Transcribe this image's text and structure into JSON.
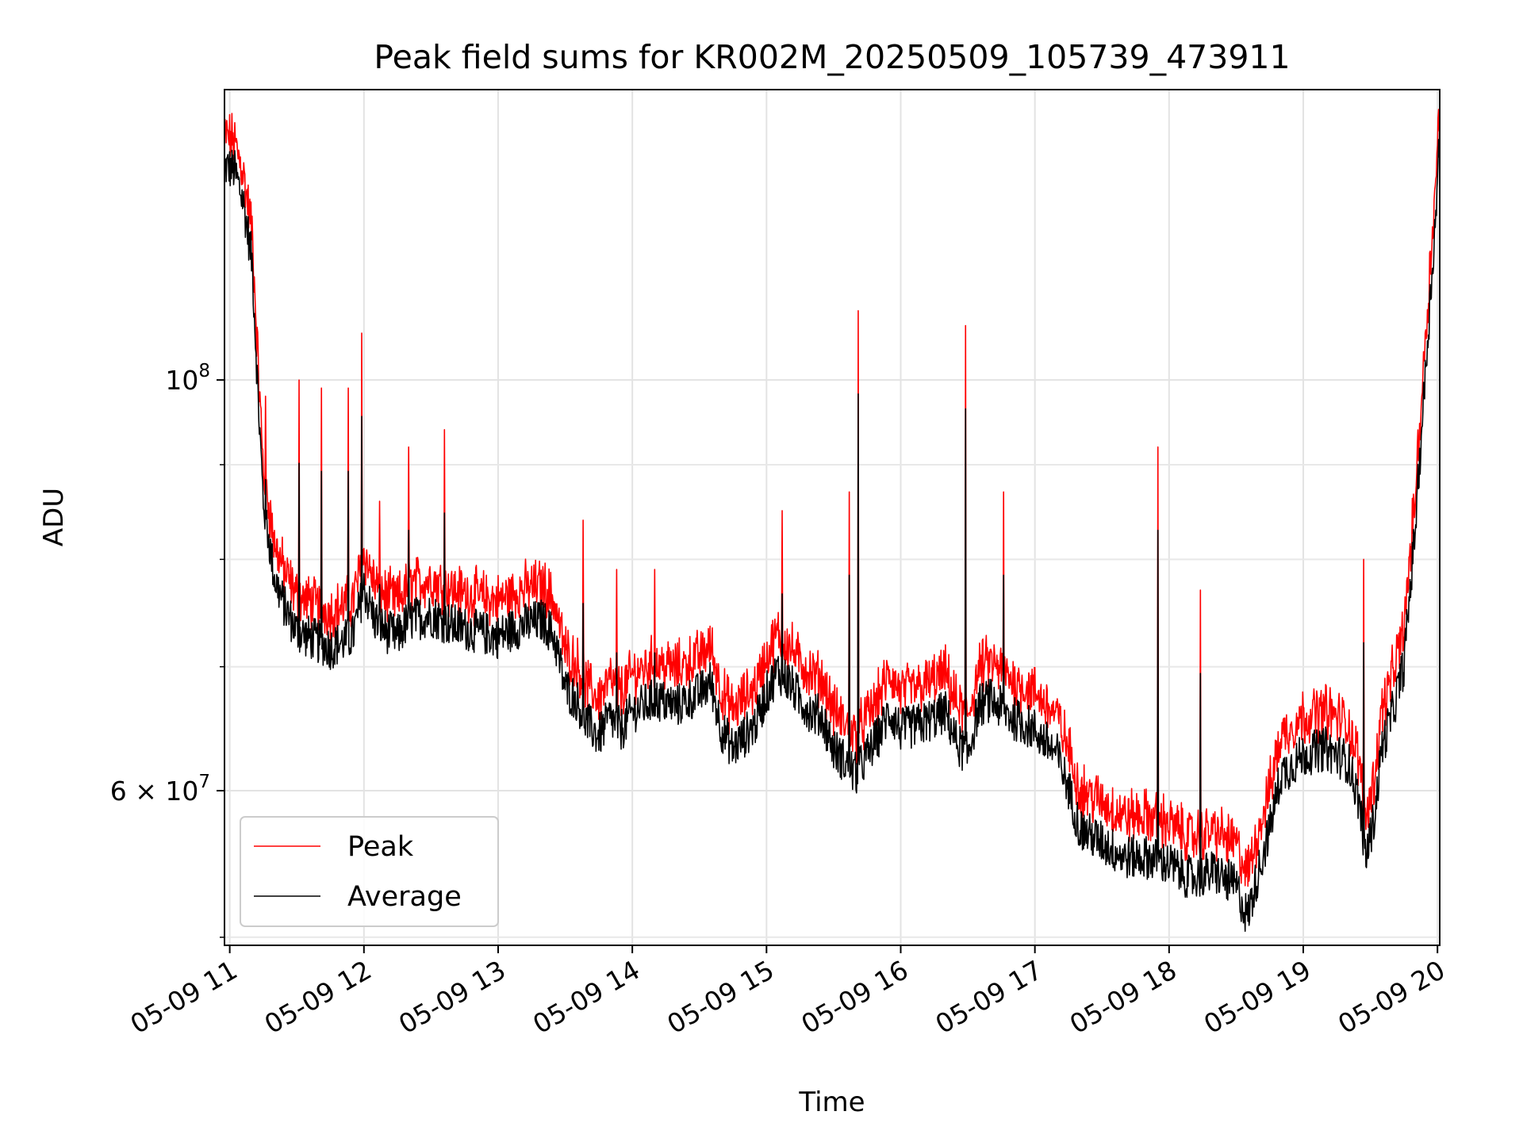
{
  "chart_data": {
    "type": "line",
    "title": "Peak field sums for KR002M_20250509_105739_473911",
    "xlabel": "Time",
    "ylabel": "ADU",
    "y_scale": "log",
    "grid": true,
    "legend_position": "lower-left",
    "xlim": [
      "2025-05-09 10:57:39",
      "2025-05-09 20:01:00"
    ],
    "ylim": [
      49500000,
      143500000
    ],
    "x_ticks": [
      {
        "x": "2025-05-09 11:00",
        "label": "05-09 11"
      },
      {
        "x": "2025-05-09 12:00",
        "label": "05-09 12"
      },
      {
        "x": "2025-05-09 13:00",
        "label": "05-09 13"
      },
      {
        "x": "2025-05-09 14:00",
        "label": "05-09 14"
      },
      {
        "x": "2025-05-09 15:00",
        "label": "05-09 15"
      },
      {
        "x": "2025-05-09 16:00",
        "label": "05-09 16"
      },
      {
        "x": "2025-05-09 17:00",
        "label": "05-09 17"
      },
      {
        "x": "2025-05-09 18:00",
        "label": "05-09 18"
      },
      {
        "x": "2025-05-09 19:00",
        "label": "05-09 19"
      },
      {
        "x": "2025-05-09 20:00",
        "label": "05-09 20"
      }
    ],
    "y_major_ticks": [
      {
        "value": 100000000,
        "base": "10",
        "exp": "8"
      },
      {
        "value": 60000000,
        "base": "6 × 10",
        "exp": "7"
      }
    ],
    "y_minor_ticks": [
      50000000,
      70000000,
      80000000,
      90000000
    ],
    "series": [
      {
        "name": "Peak",
        "color": "#ff0000",
        "x": [
          "2025-05-09 10:57:39",
          "2025-05-09 11:02",
          "2025-05-09 11:06",
          "2025-05-09 11:10",
          "2025-05-09 11:13",
          "2025-05-09 11:15",
          "2025-05-09 11:20",
          "2025-05-09 11:25",
          "2025-05-09 11:30",
          "2025-05-09 11:35",
          "2025-05-09 11:40",
          "2025-05-09 11:45",
          "2025-05-09 11:50",
          "2025-05-09 11:55",
          "2025-05-09 12:00",
          "2025-05-09 12:05",
          "2025-05-09 12:10",
          "2025-05-09 12:15",
          "2025-05-09 12:20",
          "2025-05-09 12:30",
          "2025-05-09 12:40",
          "2025-05-09 12:50",
          "2025-05-09 13:00",
          "2025-05-09 13:10",
          "2025-05-09 13:20",
          "2025-05-09 13:25",
          "2025-05-09 13:30",
          "2025-05-09 13:35",
          "2025-05-09 13:40",
          "2025-05-09 13:45",
          "2025-05-09 13:50",
          "2025-05-09 13:55",
          "2025-05-09 14:00",
          "2025-05-09 14:10",
          "2025-05-09 14:20",
          "2025-05-09 14:30",
          "2025-05-09 14:35",
          "2025-05-09 14:40",
          "2025-05-09 14:45",
          "2025-05-09 14:50",
          "2025-05-09 14:55",
          "2025-05-09 15:00",
          "2025-05-09 15:05",
          "2025-05-09 15:10",
          "2025-05-09 15:15",
          "2025-05-09 15:20",
          "2025-05-09 15:25",
          "2025-05-09 15:30",
          "2025-05-09 15:35",
          "2025-05-09 15:40",
          "2025-05-09 15:45",
          "2025-05-09 15:50",
          "2025-05-09 15:55",
          "2025-05-09 16:00",
          "2025-05-09 16:10",
          "2025-05-09 16:20",
          "2025-05-09 16:25",
          "2025-05-09 16:30",
          "2025-05-09 16:35",
          "2025-05-09 16:40",
          "2025-05-09 16:50",
          "2025-05-09 17:00",
          "2025-05-09 17:10",
          "2025-05-09 17:15",
          "2025-05-09 17:20",
          "2025-05-09 17:30",
          "2025-05-09 17:40",
          "2025-05-09 17:50",
          "2025-05-09 18:00",
          "2025-05-09 18:10",
          "2025-05-09 18:20",
          "2025-05-09 18:30",
          "2025-05-09 18:35",
          "2025-05-09 18:40",
          "2025-05-09 18:45",
          "2025-05-09 18:50",
          "2025-05-09 19:00",
          "2025-05-09 19:10",
          "2025-05-09 19:20",
          "2025-05-09 19:25",
          "2025-05-09 19:28",
          "2025-05-09 19:32",
          "2025-05-09 19:35",
          "2025-05-09 19:40",
          "2025-05-09 19:45",
          "2025-05-09 19:50",
          "2025-05-09 19:55",
          "2025-05-09 20:00",
          "2025-05-09 20:01"
        ],
        "y": [
          133000000,
          132000000,
          127000000,
          118000000,
          98000000,
          88000000,
          80000000,
          77000000,
          75000000,
          74500000,
          74000000,
          73500000,
          74000000,
          74500000,
          79000000,
          76000000,
          75000000,
          74500000,
          76000000,
          76500000,
          75500000,
          75000000,
          74500000,
          75500000,
          76000000,
          74500000,
          70000000,
          69000000,
          67000000,
          66000000,
          67500000,
          66500000,
          68000000,
          69000000,
          68500000,
          69500000,
          70500000,
          66500000,
          65000000,
          66000000,
          67000000,
          69500000,
          71500000,
          70500000,
          69000000,
          68000000,
          67500000,
          65000000,
          64000000,
          63000000,
          64500000,
          66000000,
          68000000,
          66500000,
          67000000,
          68000000,
          65500000,
          64500000,
          68500000,
          69000000,
          67500000,
          66500000,
          64500000,
          62000000,
          59000000,
          58000000,
          57000000,
          57000000,
          56500000,
          55500000,
          56000000,
          55000000,
          53000000,
          56000000,
          59000000,
          63000000,
          64500000,
          65000000,
          64000000,
          61000000,
          57000000,
          60000000,
          65000000,
          68000000,
          72000000,
          85000000,
          105000000,
          130000000,
          142000000
        ]
      },
      {
        "name": "Average",
        "color": "#000000",
        "x": [
          "2025-05-09 10:57:39",
          "2025-05-09 11:02",
          "2025-05-09 11:06",
          "2025-05-09 11:10",
          "2025-05-09 11:13",
          "2025-05-09 11:15",
          "2025-05-09 11:20",
          "2025-05-09 11:25",
          "2025-05-09 11:30",
          "2025-05-09 11:35",
          "2025-05-09 11:40",
          "2025-05-09 11:45",
          "2025-05-09 11:50",
          "2025-05-09 11:55",
          "2025-05-09 12:00",
          "2025-05-09 12:05",
          "2025-05-09 12:10",
          "2025-05-09 12:15",
          "2025-05-09 12:20",
          "2025-05-09 12:30",
          "2025-05-09 12:40",
          "2025-05-09 12:50",
          "2025-05-09 13:00",
          "2025-05-09 13:10",
          "2025-05-09 13:20",
          "2025-05-09 13:25",
          "2025-05-09 13:30",
          "2025-05-09 13:35",
          "2025-05-09 13:40",
          "2025-05-09 13:45",
          "2025-05-09 13:50",
          "2025-05-09 13:55",
          "2025-05-09 14:00",
          "2025-05-09 14:10",
          "2025-05-09 14:20",
          "2025-05-09 14:30",
          "2025-05-09 14:35",
          "2025-05-09 14:40",
          "2025-05-09 14:45",
          "2025-05-09 14:50",
          "2025-05-09 14:55",
          "2025-05-09 15:00",
          "2025-05-09 15:05",
          "2025-05-09 15:10",
          "2025-05-09 15:15",
          "2025-05-09 15:20",
          "2025-05-09 15:25",
          "2025-05-09 15:30",
          "2025-05-09 15:35",
          "2025-05-09 15:40",
          "2025-05-09 15:45",
          "2025-05-09 15:50",
          "2025-05-09 15:55",
          "2025-05-09 16:00",
          "2025-05-09 16:10",
          "2025-05-09 16:20",
          "2025-05-09 16:25",
          "2025-05-09 16:30",
          "2025-05-09 16:35",
          "2025-05-09 16:40",
          "2025-05-09 16:50",
          "2025-05-09 17:00",
          "2025-05-09 17:10",
          "2025-05-09 17:15",
          "2025-05-09 17:20",
          "2025-05-09 17:30",
          "2025-05-09 17:40",
          "2025-05-09 17:50",
          "2025-05-09 18:00",
          "2025-05-09 18:10",
          "2025-05-09 18:20",
          "2025-05-09 18:30",
          "2025-05-09 18:35",
          "2025-05-09 18:40",
          "2025-05-09 18:45",
          "2025-05-09 18:50",
          "2025-05-09 19:00",
          "2025-05-09 19:10",
          "2025-05-09 19:20",
          "2025-05-09 19:25",
          "2025-05-09 19:28",
          "2025-05-09 19:32",
          "2025-05-09 19:35",
          "2025-05-09 19:40",
          "2025-05-09 19:45",
          "2025-05-09 19:50",
          "2025-05-09 19:55",
          "2025-05-09 20:00",
          "2025-05-09 20:01"
        ],
        "y": [
          131000000,
          130500000,
          125500000,
          116500000,
          96500000,
          86500000,
          78500000,
          75500000,
          73500000,
          73000000,
          72500000,
          72000000,
          72500000,
          73000000,
          77500000,
          74500000,
          73500000,
          73000000,
          74500000,
          75000000,
          74000000,
          73500000,
          73000000,
          74000000,
          74500000,
          73000000,
          68500000,
          67500000,
          65500000,
          64500000,
          66000000,
          65000000,
          66500000,
          67500000,
          67000000,
          68000000,
          69000000,
          65000000,
          63500000,
          64500000,
          65500000,
          68000000,
          70000000,
          69000000,
          67500000,
          66500000,
          66000000,
          63500000,
          62500000,
          61500000,
          63000000,
          64500000,
          66500000,
          65000000,
          65500000,
          66500000,
          64000000,
          63000000,
          67000000,
          67500000,
          66000000,
          65000000,
          63000000,
          60500000,
          57500000,
          56500000,
          55500000,
          55500000,
          55000000,
          54000000,
          54500000,
          53500000,
          51500000,
          54500000,
          57500000,
          61500000,
          63000000,
          63500000,
          62500000,
          59500000,
          55500000,
          58500000,
          63500000,
          66500000,
          70500000,
          83500000,
          103000000,
          127500000,
          139000000
        ]
      }
    ],
    "spikes": [
      {
        "x": "2025-05-09 11:16",
        "y": 98000000
      },
      {
        "x": "2025-05-09 11:31",
        "y": 100000000
      },
      {
        "x": "2025-05-09 11:41",
        "y": 99000000
      },
      {
        "x": "2025-05-09 11:53",
        "y": 99000000
      },
      {
        "x": "2025-05-09 11:59",
        "y": 106000000
      },
      {
        "x": "2025-05-09 12:07",
        "y": 86000000
      },
      {
        "x": "2025-05-09 12:20",
        "y": 92000000
      },
      {
        "x": "2025-05-09 12:36",
        "y": 94000000
      },
      {
        "x": "2025-05-09 13:38",
        "y": 84000000
      },
      {
        "x": "2025-05-09 13:53",
        "y": 79000000
      },
      {
        "x": "2025-05-09 14:10",
        "y": 79000000
      },
      {
        "x": "2025-05-09 15:07",
        "y": 85000000
      },
      {
        "x": "2025-05-09 15:37",
        "y": 87000000
      },
      {
        "x": "2025-05-09 15:41",
        "y": 109000000
      },
      {
        "x": "2025-05-09 16:29",
        "y": 107000000
      },
      {
        "x": "2025-05-09 16:46",
        "y": 87000000
      },
      {
        "x": "2025-05-09 17:55",
        "y": 92000000
      },
      {
        "x": "2025-05-09 18:14",
        "y": 77000000
      },
      {
        "x": "2025-05-09 19:27",
        "y": 80000000
      }
    ]
  }
}
